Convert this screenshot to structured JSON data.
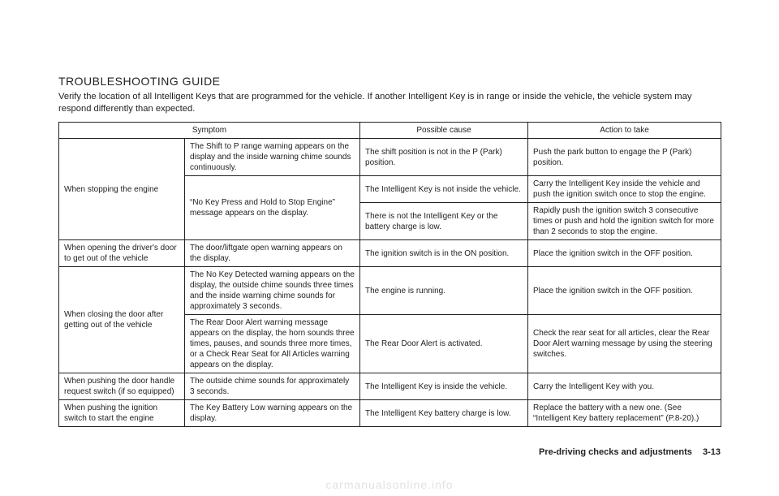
{
  "title": "TROUBLESHOOTING GUIDE",
  "intro": "Verify the location of all Intelligent Keys that are programmed for the vehicle. If another Intelligent Key is in range or inside the vehicle, the vehicle system may respond differently than expected.",
  "headers": {
    "symptom": "Symptom",
    "cause": "Possible cause",
    "action": "Action to take"
  },
  "rows": {
    "r1": {
      "scenario": "When stopping the engine",
      "symptom": "The Shift to P range warning appears on the display and the inside warning chime sounds continuously.",
      "cause": "The shift position is not in the P (Park) position.",
      "action": "Push the park button to engage the P (Park) position."
    },
    "r2": {
      "symptom": "“No Key Press and Hold to Stop Engine” message appears on the display.",
      "cause": "The Intelligent Key is not inside the vehicle.",
      "action": "Carry the Intelligent Key inside the vehicle and push the ignition switch once to stop the engine."
    },
    "r3": {
      "cause": "There is not the Intelligent Key or the battery charge is low.",
      "action": "Rapidly push the ignition switch 3 consecutive times or push and hold the ignition switch for more than 2 seconds to stop the engine."
    },
    "r4": {
      "scenario": "When opening the driver's door to get out of the vehicle",
      "symptom": "The door/liftgate open warning appears on the display.",
      "cause": "The ignition switch is in the ON position.",
      "action": "Place the ignition switch in the OFF position."
    },
    "r5": {
      "scenario": "When closing the door after getting out of the vehicle",
      "symptom": "The No Key Detected warning appears on the display, the outside chime sounds three times and the inside warning chime sounds for approximately 3 seconds.",
      "cause": "The engine is running.",
      "action": "Place the ignition switch in the OFF position."
    },
    "r6": {
      "symptom": "The Rear Door Alert warning message appears on the display, the horn sounds three times, pauses, and sounds three more times, or a Check Rear Seat for All Articles warning appears on the display.",
      "cause": "The Rear Door Alert is activated.",
      "action": "Check the rear seat for all articles, clear the Rear Door Alert warning message by using the steering switches."
    },
    "r7": {
      "scenario": "When pushing the door handle request switch (if so equipped)",
      "symptom": "The outside chime sounds for approximately 3 seconds.",
      "cause": "The Intelligent Key is inside the vehicle.",
      "action": "Carry the Intelligent Key with you."
    },
    "r8": {
      "scenario": "When pushing the ignition switch to start the engine",
      "symptom": "The Key Battery Low warning appears on the display.",
      "cause": "The Intelligent Key battery charge is low.",
      "action": "Replace the battery with a new one. (See “Intelligent Key battery replacement” (P.8-20).)"
    }
  },
  "footer": {
    "section": "Pre-driving checks and adjustments",
    "page": "3-13"
  },
  "watermark": "carmanualsonline.info"
}
